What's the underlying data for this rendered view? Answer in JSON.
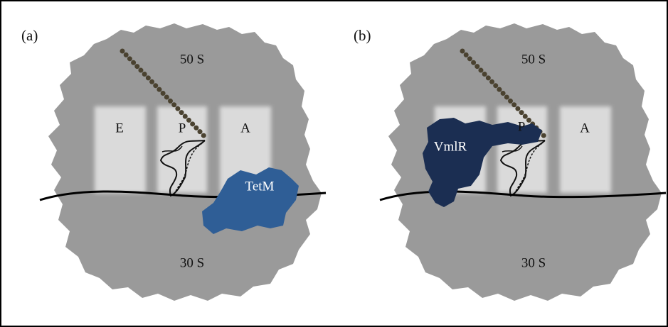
{
  "panels": [
    {
      "label": "(a)",
      "large_subunit": "50 S",
      "small_subunit": "30 S",
      "sites": [
        "E",
        "P",
        "A"
      ],
      "factor": "TetM"
    },
    {
      "label": "(b)",
      "large_subunit": "50 S",
      "small_subunit": "30 S",
      "sites": [
        "P",
        "A"
      ],
      "factor": "VmlR"
    }
  ]
}
